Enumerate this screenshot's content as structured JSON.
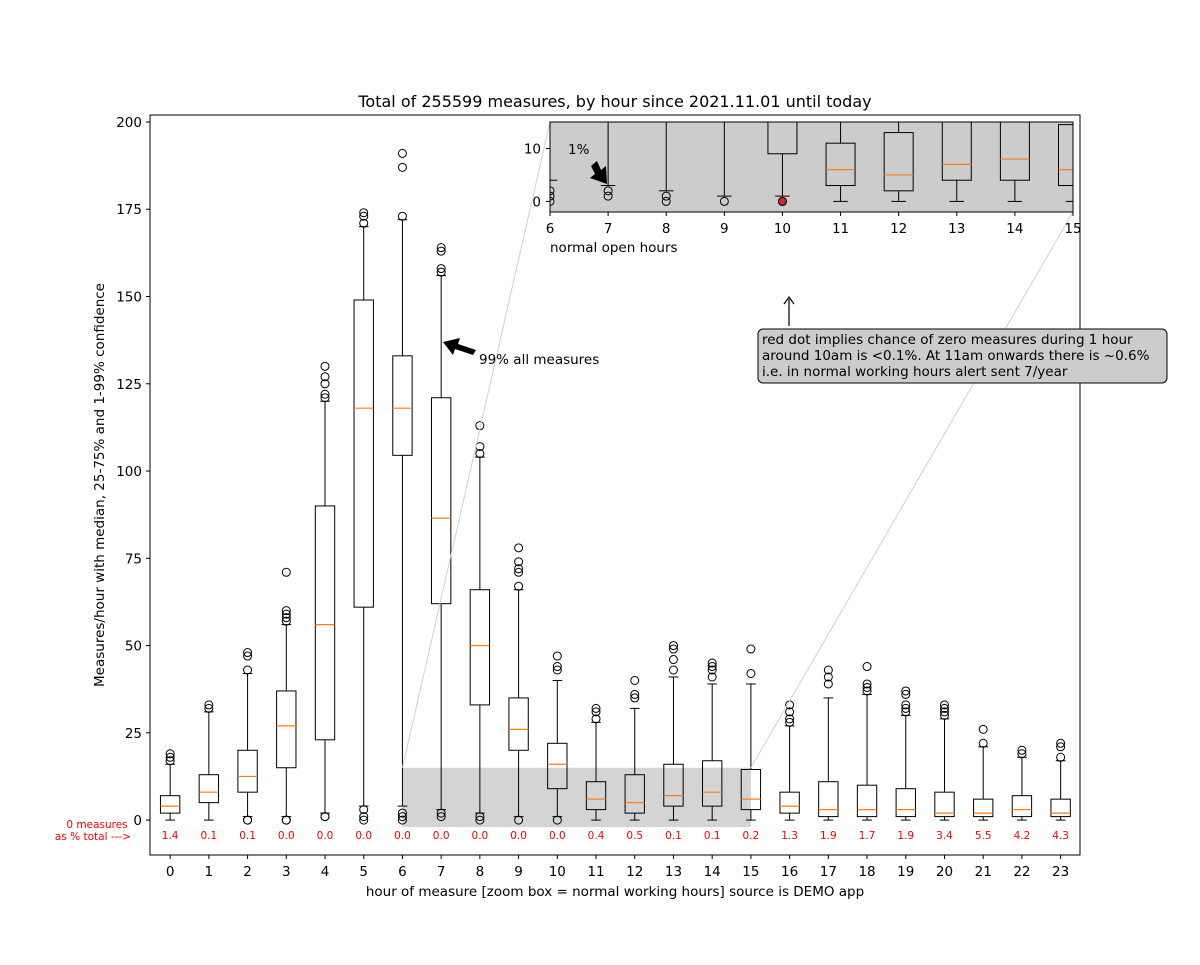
{
  "chart_data": {
    "type": "box",
    "title": "Total of 255599 measures, by hour since 2021.11.01 until today",
    "xlabel": "hour of measure [zoom box = normal working hours] source is DEMO app",
    "ylabel": "Measures/hour with median, 25-75% and 1-99% confidence",
    "ylim": [
      -10,
      202
    ],
    "yticks": [
      0,
      25,
      50,
      75,
      100,
      125,
      150,
      175,
      200
    ],
    "categories": [
      "0",
      "1",
      "2",
      "3",
      "4",
      "5",
      "6",
      "7",
      "8",
      "9",
      "10",
      "11",
      "12",
      "13",
      "14",
      "15",
      "16",
      "17",
      "18",
      "19",
      "20",
      "21",
      "22",
      "23"
    ],
    "boxes": [
      {
        "hour": 0,
        "whislo": 0,
        "q1": 2,
        "median": 4,
        "q3": 7,
        "whishi": 16,
        "fliers": [
          17,
          18,
          19
        ]
      },
      {
        "hour": 1,
        "whislo": 0,
        "q1": 5,
        "median": 8,
        "q3": 13,
        "whishi": 31,
        "fliers": [
          32,
          33
        ]
      },
      {
        "hour": 2,
        "whislo": 1,
        "q1": 8,
        "median": 12.5,
        "q3": 20,
        "whishi": 42,
        "fliers": [
          0,
          0,
          43,
          47,
          48
        ]
      },
      {
        "hour": 3,
        "whislo": 1,
        "q1": 15,
        "median": 27,
        "q3": 37,
        "whishi": 56,
        "fliers": [
          0,
          0,
          57,
          58,
          59,
          60,
          71
        ]
      },
      {
        "hour": 4,
        "whislo": 2,
        "q1": 23,
        "median": 56,
        "q3": 90,
        "whishi": 120,
        "fliers": [
          1,
          1,
          121,
          122,
          125,
          127,
          130
        ]
      },
      {
        "hour": 5,
        "whislo": 4,
        "q1": 61,
        "median": 118,
        "q3": 149,
        "whishi": 170,
        "fliers": [
          0,
          1,
          3,
          171,
          173,
          174
        ]
      },
      {
        "hour": 6,
        "whislo": 4,
        "q1": 104.5,
        "median": 118,
        "q3": 133,
        "whishi": 172,
        "fliers": [
          0,
          1,
          2,
          173,
          187,
          191
        ]
      },
      {
        "hour": 7,
        "whislo": 3,
        "q1": 62,
        "median": 86.5,
        "q3": 121,
        "whishi": 156,
        "fliers": [
          1,
          2,
          157,
          158,
          163,
          164
        ]
      },
      {
        "hour": 8,
        "whislo": 2,
        "q1": 33,
        "median": 50,
        "q3": 66,
        "whishi": 104,
        "fliers": [
          0,
          1,
          105,
          107,
          113
        ]
      },
      {
        "hour": 9,
        "whislo": 1,
        "q1": 20,
        "median": 26,
        "q3": 35,
        "whishi": 66,
        "fliers": [
          0,
          67,
          71,
          72,
          74,
          78
        ]
      },
      {
        "hour": 10,
        "whislo": 1,
        "q1": 9,
        "median": 16,
        "q3": 22,
        "whishi": 40,
        "fliers": [
          0,
          43,
          44,
          47
        ]
      },
      {
        "hour": 11,
        "whislo": 0,
        "q1": 3,
        "median": 6,
        "q3": 11,
        "whishi": 28,
        "fliers": [
          29,
          31,
          32
        ]
      },
      {
        "hour": 12,
        "whislo": 0,
        "q1": 2,
        "median": 5,
        "q3": 13,
        "whishi": 32,
        "fliers": [
          35,
          36,
          40
        ]
      },
      {
        "hour": 13,
        "whislo": 0,
        "q1": 4,
        "median": 7,
        "q3": 16,
        "whishi": 41,
        "fliers": [
          43,
          46,
          49,
          50
        ]
      },
      {
        "hour": 14,
        "whislo": 0,
        "q1": 4,
        "median": 8,
        "q3": 17,
        "whishi": 39,
        "fliers": [
          41,
          43,
          44,
          45
        ]
      },
      {
        "hour": 15,
        "whislo": 0,
        "q1": 3,
        "median": 6,
        "q3": 14.5,
        "whishi": 39,
        "fliers": [
          42,
          49
        ]
      },
      {
        "hour": 16,
        "whislo": 0,
        "q1": 2,
        "median": 4,
        "q3": 8,
        "whishi": 27,
        "fliers": [
          28,
          29,
          31,
          33
        ]
      },
      {
        "hour": 17,
        "whislo": 0,
        "q1": 1,
        "median": 3,
        "q3": 11,
        "whishi": 35,
        "fliers": [
          39,
          41,
          43
        ]
      },
      {
        "hour": 18,
        "whislo": 0,
        "q1": 1,
        "median": 3,
        "q3": 10,
        "whishi": 36,
        "fliers": [
          37,
          38,
          39,
          44
        ]
      },
      {
        "hour": 19,
        "whislo": 0,
        "q1": 1,
        "median": 3,
        "q3": 9,
        "whishi": 30,
        "fliers": [
          31,
          32,
          33,
          36,
          37
        ]
      },
      {
        "hour": 20,
        "whislo": 0,
        "q1": 1,
        "median": 2,
        "q3": 8,
        "whishi": 29,
        "fliers": [
          30,
          31,
          32,
          33
        ]
      },
      {
        "hour": 21,
        "whislo": 0,
        "q1": 1,
        "median": 2,
        "q3": 6,
        "whishi": 21,
        "fliers": [
          22,
          26
        ]
      },
      {
        "hour": 22,
        "whislo": 0,
        "q1": 1,
        "median": 3,
        "q3": 7,
        "whishi": 18,
        "fliers": [
          19,
          20
        ]
      },
      {
        "hour": 23,
        "whislo": 0,
        "q1": 1,
        "median": 2,
        "q3": 6,
        "whishi": 17,
        "fliers": [
          18,
          21,
          22
        ]
      }
    ],
    "zero_pct_label": "0 measures\nas % total --->",
    "zero_pct": [
      "1.4",
      "0.1",
      "0.1",
      "0.0",
      "0.0",
      "0.0",
      "0.0",
      "0.0",
      "0.0",
      "0.0",
      "0.0",
      "0.4",
      "0.5",
      "0.1",
      "0.1",
      "0.2",
      "1.3",
      "1.9",
      "1.7",
      "1.9",
      "3.4",
      "5.5",
      "4.2",
      "4.3"
    ],
    "zoom_box": {
      "x_range": [
        6,
        15
      ],
      "y_range": [
        -2,
        15
      ]
    },
    "annotation_99": "99% all measures",
    "annotation_99_target": {
      "hour": 7,
      "value": 136
    },
    "note": "red dot implies chance of zero measures during 1 hour\naround 10am is <0.1%. At 11am onwards there is ~0.6%\ni.e. in normal working hours alert sent 7/year",
    "inset": {
      "xlabel": "normal open hours",
      "xlim": [
        6,
        15
      ],
      "ylim": [
        -2,
        15
      ],
      "xticks": [
        6,
        7,
        8,
        9,
        10,
        11,
        12,
        13,
        14,
        15
      ],
      "yticks": [
        0,
        10
      ],
      "annotation_1pct": "1%",
      "red_dot": {
        "hour": 10,
        "value": 0
      }
    },
    "colors": {
      "median": "#ff7f0e",
      "zero_pct_text": "#ff0000",
      "zoom_fill": "#cccccc",
      "red_dot": "#d62728",
      "box": "#000000"
    }
  }
}
